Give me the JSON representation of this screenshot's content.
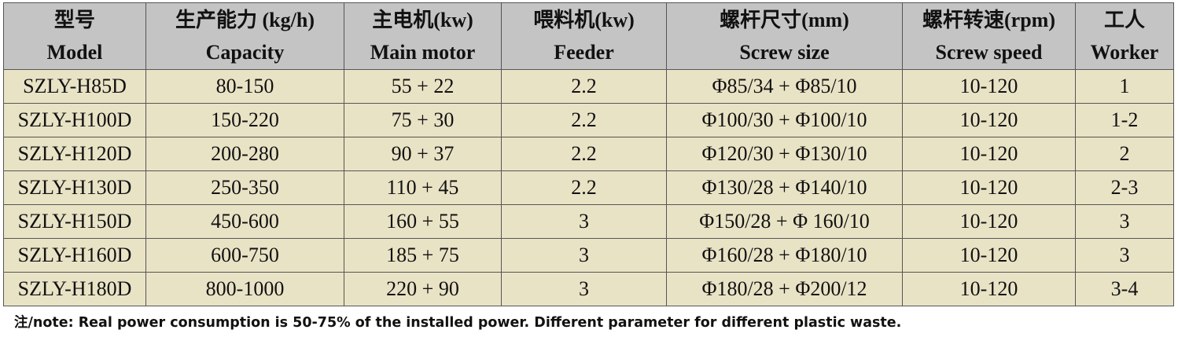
{
  "table": {
    "header": [
      {
        "zh": "型号",
        "en": "Model"
      },
      {
        "zh": "生产能力 (kg/h)",
        "en": "Capacity"
      },
      {
        "zh": "主电机(kw)",
        "en": "Main motor"
      },
      {
        "zh": "喂料机(kw)",
        "en": "Feeder"
      },
      {
        "zh": "螺杆尺寸(mm)",
        "en": "Screw size"
      },
      {
        "zh": "螺杆转速(rpm)",
        "en": "Screw speed"
      },
      {
        "zh": "工人",
        "en": "Worker"
      }
    ],
    "rows": [
      [
        "SZLY-H85D",
        "80-150",
        "55 + 22",
        "2.2",
        "Φ85/34 + Φ85/10",
        "10-120",
        "1"
      ],
      [
        "SZLY-H100D",
        "150-220",
        "75 + 30",
        "2.2",
        "Φ100/30 + Φ100/10",
        "10-120",
        "1-2"
      ],
      [
        "SZLY-H120D",
        "200-280",
        "90 + 37",
        "2.2",
        "Φ120/30 + Φ130/10",
        "10-120",
        "2"
      ],
      [
        "SZLY-H130D",
        "250-350",
        "110 + 45",
        "2.2",
        "Φ130/28 + Φ140/10",
        "10-120",
        "2-3"
      ],
      [
        "SZLY-H150D",
        "450-600",
        "160 + 55",
        "3",
        "Φ150/28 + Φ 160/10",
        "10-120",
        "3"
      ],
      [
        "SZLY-H160D",
        "600-750",
        "185 + 75",
        "3",
        "Φ160/28 + Φ180/10",
        "10-120",
        "3"
      ],
      [
        "SZLY-H180D",
        "800-1000",
        "220 + 90",
        "3",
        "Φ180/28 + Φ200/12",
        "10-120",
        "3-4"
      ]
    ]
  },
  "note": "注/note: Real power consumption is 50-75% of the installed power. Different parameter for different plastic waste."
}
